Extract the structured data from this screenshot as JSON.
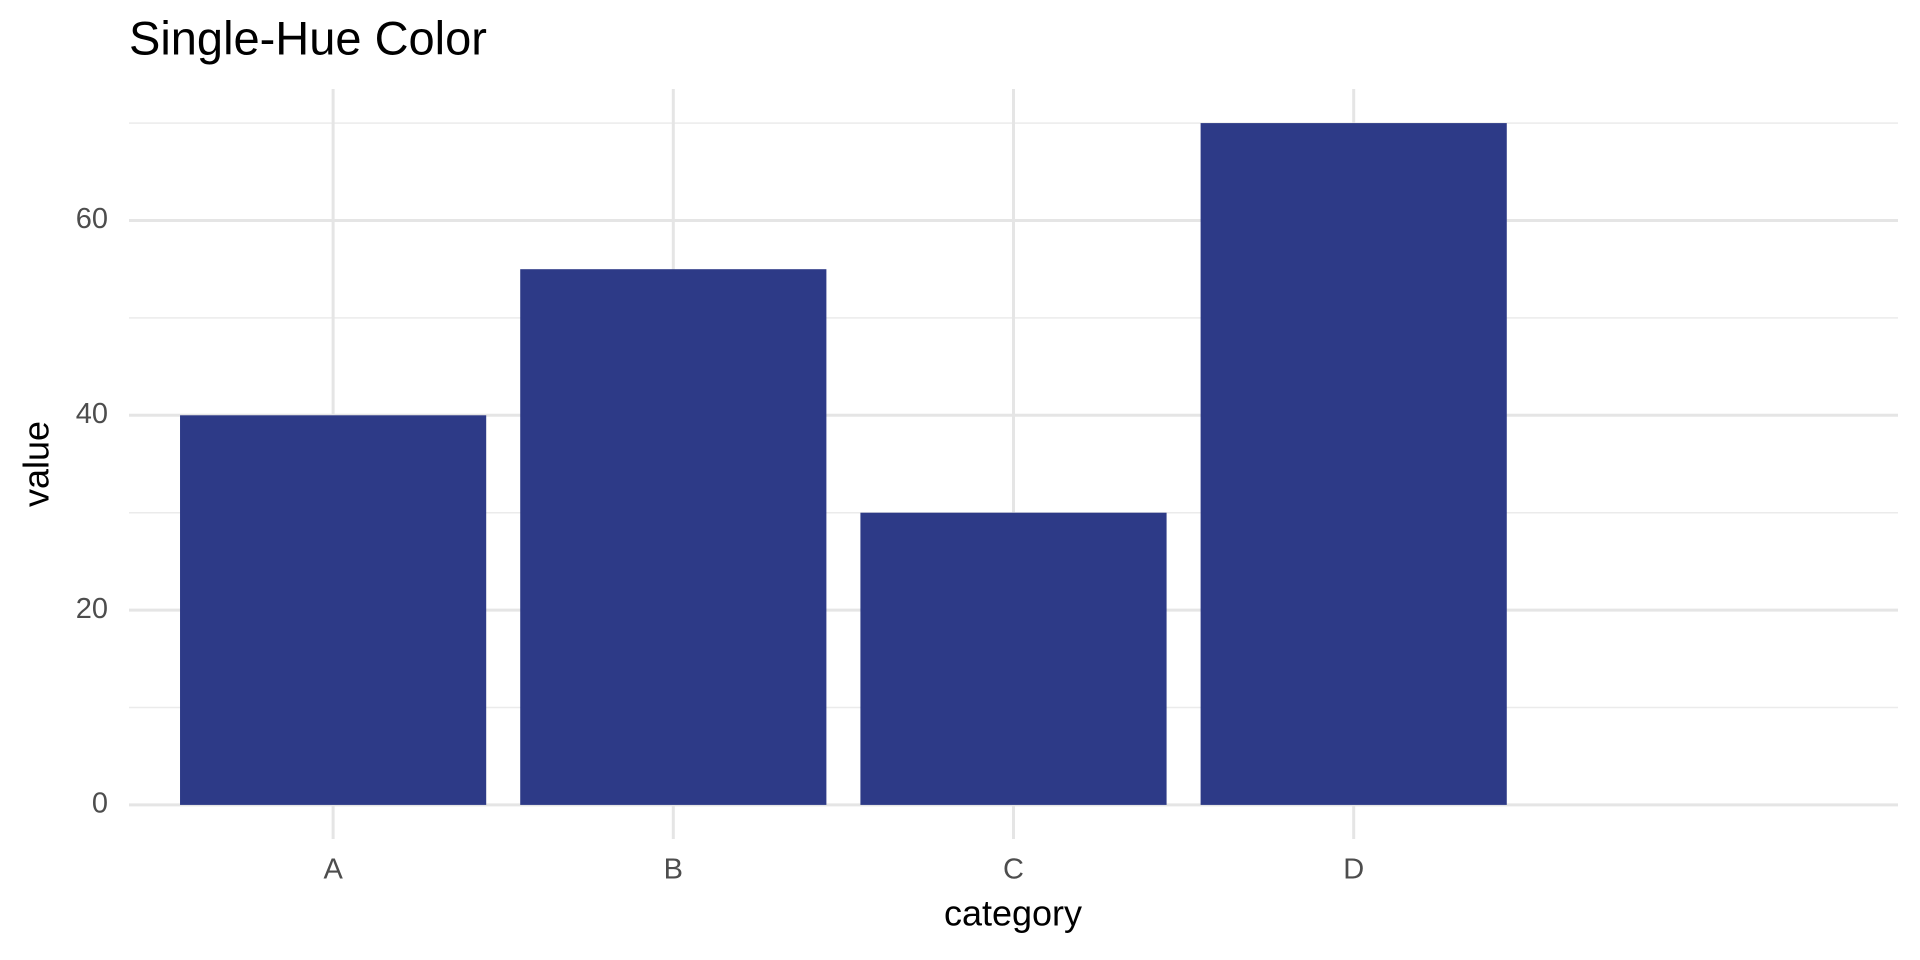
{
  "chart_data": {
    "type": "bar",
    "title": "Single-Hue Color",
    "x_label": "category",
    "y_label": "value",
    "categories": [
      "A",
      "B",
      "C",
      "D"
    ],
    "values": [
      40,
      55,
      30,
      70
    ],
    "color": "#2d3a87",
    "ylim": [
      -3.5,
      73.5
    ],
    "yticks": [
      0,
      20,
      40,
      60
    ],
    "minor_yticks": [
      10,
      30,
      50,
      70
    ],
    "grid": true
  }
}
